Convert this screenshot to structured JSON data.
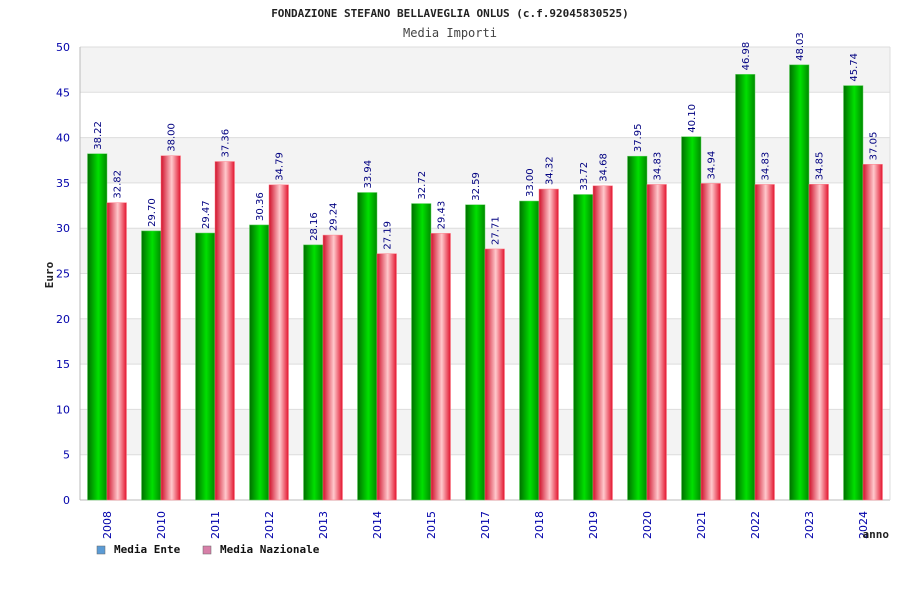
{
  "chart_data": {
    "type": "bar",
    "title": "FONDAZIONE STEFANO BELLAVEGLIA ONLUS (c.f.92045830525)",
    "subtitle": "Media Importi",
    "xlabel": "anno",
    "ylabel": "Euro",
    "ylim": [
      0,
      50
    ],
    "yticks": [
      0,
      5,
      10,
      15,
      20,
      25,
      30,
      35,
      40,
      45,
      50
    ],
    "grid": true,
    "legend_position": "bottom-left",
    "categories": [
      "2008",
      "2010",
      "2011",
      "2012",
      "2013",
      "2014",
      "2015",
      "2017",
      "2018",
      "2019",
      "2020",
      "2021",
      "2022",
      "2023",
      "2024"
    ],
    "series": [
      {
        "name": "Media Ente",
        "color": "#00bb00",
        "legend_color": "#5b9bd5",
        "values": [
          38.22,
          29.7,
          29.47,
          30.36,
          28.16,
          33.94,
          32.72,
          32.59,
          33.0,
          33.72,
          37.95,
          40.1,
          46.98,
          48.03,
          45.74
        ],
        "labels": [
          "38.22",
          "29.70",
          "29.47",
          "30.36",
          "28.16",
          "33.94",
          "32.72",
          "32.59",
          "33.00",
          "33.72",
          "37.95",
          "40.10",
          "46.98",
          "48.03",
          "45.74"
        ]
      },
      {
        "name": "Media Nazionale",
        "color": "#e8192c",
        "legend_color": "#d77fa8",
        "values": [
          32.82,
          38.0,
          37.36,
          34.79,
          29.24,
          27.19,
          29.43,
          27.71,
          34.32,
          34.68,
          34.83,
          34.94,
          34.83,
          34.85,
          37.05
        ],
        "labels": [
          "32.82",
          "38.00",
          "37.36",
          "34.79",
          "29.24",
          "27.19",
          "29.43",
          "27.71",
          "34.32",
          "34.68",
          "34.83",
          "34.94",
          "34.83",
          "34.85",
          "37.05"
        ]
      }
    ]
  }
}
